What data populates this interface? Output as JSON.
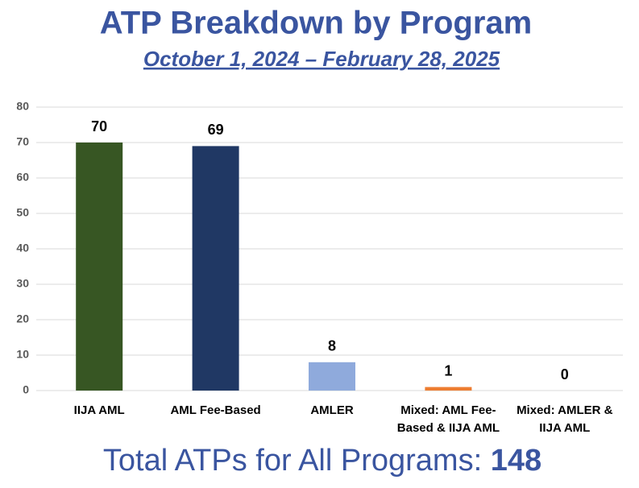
{
  "chart_data": {
    "type": "bar",
    "title": "ATP Breakdown by Program",
    "subtitle": "October 1, 2024 – February 28, 2025",
    "categories": [
      "IIJA AML",
      "AML Fee-Based",
      "AMLER",
      "Mixed: AML Fee-Based & IIJA AML",
      "Mixed: AMLER & IIJA AML"
    ],
    "values": [
      70,
      69,
      8,
      1,
      0
    ],
    "colors": [
      "#375623",
      "#203864",
      "#8faadc",
      "#ed7d31",
      "#a5a5a5"
    ],
    "ylim": [
      0,
      80
    ],
    "yticks": [
      0,
      10,
      20,
      30,
      40,
      50,
      60,
      70,
      80
    ],
    "grid": true,
    "footer": {
      "text": "Total ATPs for All Programs:",
      "total": 148
    }
  }
}
